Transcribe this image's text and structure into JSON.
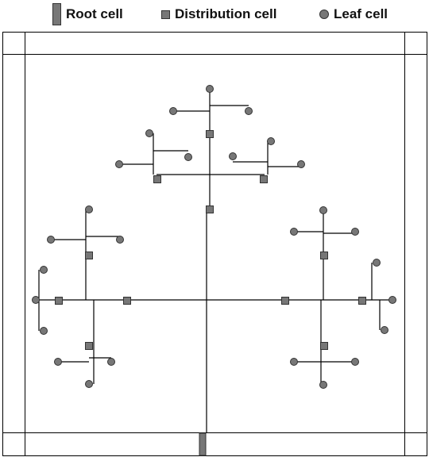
{
  "legend": {
    "root": {
      "label": "Root cell",
      "icon": "root-cell-bar-icon"
    },
    "distribution": {
      "label": "Distribution cell",
      "icon": "distribution-cell-square-icon"
    },
    "leaf": {
      "label": "Leaf cell",
      "icon": "leaf-cell-circle-icon"
    }
  },
  "colors": {
    "cell_fill": "#777777",
    "cell_stroke": "#333333",
    "line": "#000000",
    "frame": "#000000",
    "background": "#ffffff"
  }
}
